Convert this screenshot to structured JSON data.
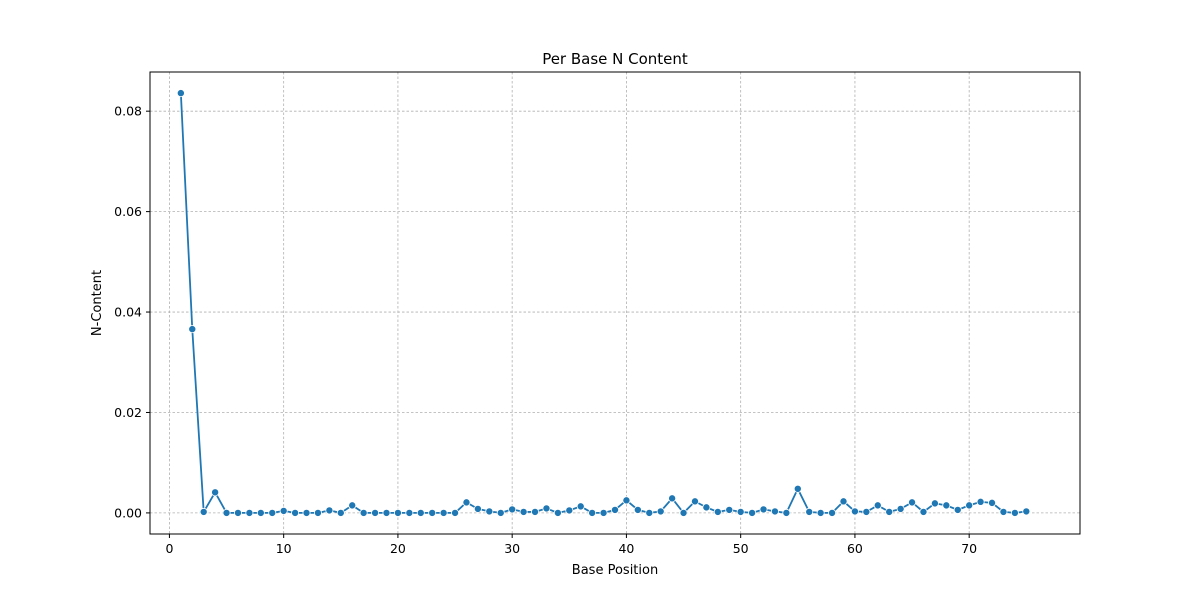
{
  "chart_data": {
    "type": "line",
    "title": "Per Base N Content",
    "xlabel": "Base Position",
    "ylabel": "N-Content",
    "xlim": [
      -1.7,
      79.7
    ],
    "ylim": [
      -0.0042,
      0.0878
    ],
    "xticks": [
      0,
      10,
      20,
      30,
      40,
      50,
      60,
      70
    ],
    "xtick_labels": [
      "0",
      "10",
      "20",
      "30",
      "40",
      "50",
      "60",
      "70"
    ],
    "yticks": [
      0.0,
      0.02,
      0.04,
      0.06,
      0.08
    ],
    "ytick_labels": [
      "0.00",
      "0.02",
      "0.04",
      "0.06",
      "0.08"
    ],
    "grid": true,
    "legend": "none",
    "line_color": "#1f77b4",
    "marker": "circle",
    "x": [
      1,
      2,
      3,
      4,
      5,
      6,
      7,
      8,
      9,
      10,
      11,
      12,
      13,
      14,
      15,
      16,
      17,
      18,
      19,
      20,
      21,
      22,
      23,
      24,
      25,
      26,
      27,
      28,
      29,
      30,
      31,
      32,
      33,
      34,
      35,
      36,
      37,
      38,
      39,
      40,
      41,
      42,
      43,
      44,
      45,
      46,
      47,
      48,
      49,
      50,
      51,
      52,
      53,
      54,
      55,
      56,
      57,
      58,
      59,
      60,
      61,
      62,
      63,
      64,
      65,
      66,
      67,
      68,
      69,
      70,
      71,
      72,
      73,
      74,
      75
    ],
    "y": [
      0.0836,
      0.0366,
      0.0002,
      0.0041,
      0.0,
      0.0,
      0.0,
      0.0,
      0.0,
      0.0004,
      0.0,
      0.0,
      0.0,
      0.0005,
      0.0,
      0.0015,
      0.0,
      0.0,
      0.0,
      0.0,
      0.0,
      0.0,
      0.0,
      0.0,
      0.0,
      0.0021,
      0.0008,
      0.0003,
      0.0,
      0.0007,
      0.0002,
      0.0002,
      0.0009,
      0.0,
      0.0005,
      0.0013,
      0.0,
      0.0,
      0.0006,
      0.0025,
      0.0006,
      0.0,
      0.0003,
      0.0029,
      0.0,
      0.0023,
      0.0011,
      0.0002,
      0.0006,
      0.0002,
      0.0,
      0.0007,
      0.0003,
      0.0,
      0.0048,
      0.0002,
      0.0,
      0.0,
      0.0023,
      0.0003,
      0.0002,
      0.0015,
      0.0002,
      0.0008,
      0.0021,
      0.0002,
      0.0019,
      0.0015,
      0.0006,
      0.0015,
      0.0022,
      0.002,
      0.0002,
      0.0,
      0.0003
    ]
  }
}
